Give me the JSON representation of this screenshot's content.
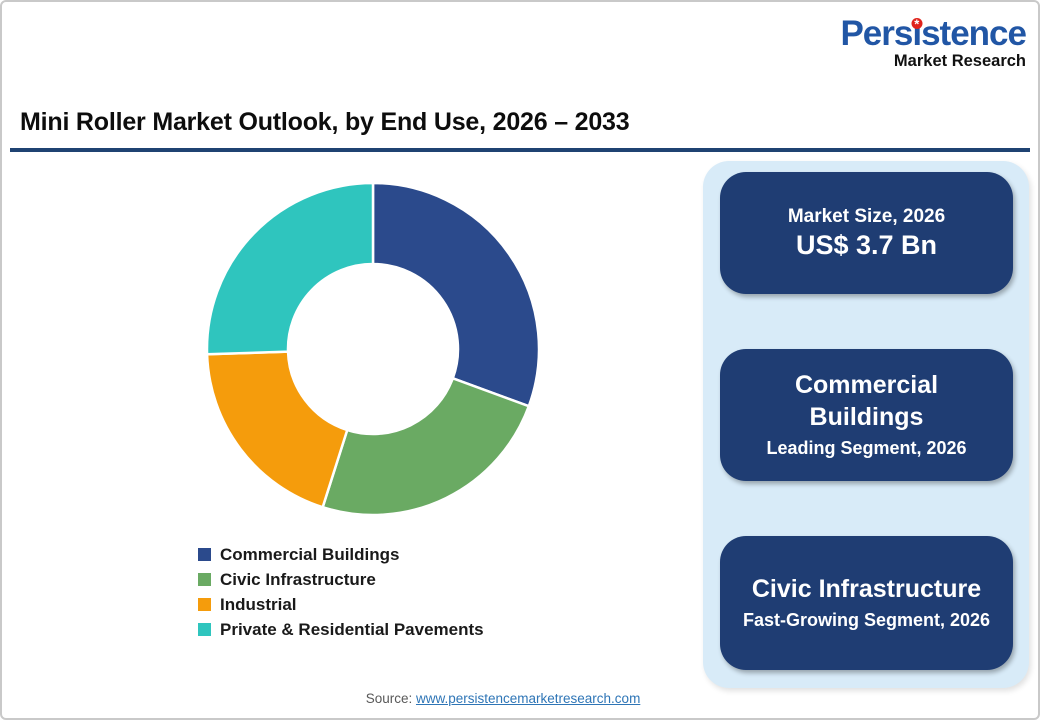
{
  "page": {
    "title": "Mini Roller Market Outlook, by End Use, 2026 – 2033",
    "source_label": "Source:",
    "source_link": "www.persistencemarketresearch.com"
  },
  "logo": {
    "word_parts": [
      "Pers",
      "ı",
      "stence"
    ],
    "subtitle": "Market Research",
    "brand_blue": "#2156a5",
    "brand_red": "#e0231c"
  },
  "colors": {
    "title_rule": "#1f4372",
    "panel_background": "#d8ebf8",
    "card_background": "#1f3d73"
  },
  "chart_data": {
    "type": "pie",
    "donut": true,
    "title": "Mini Roller Market Outlook, by End Use, 2026 – 2033",
    "start_angle_deg": 0,
    "legend_position": "bottom-left",
    "segments": [
      {
        "label": "Commercial Buildings",
        "value_pct": 30.6,
        "color": "#2b4a8c"
      },
      {
        "label": "Civic Infrastructure",
        "value_pct": 24.3,
        "color": "#6aaa63"
      },
      {
        "label": "Industrial",
        "value_pct": 19.6,
        "color": "#f59c0c"
      },
      {
        "label": "Private & Residential Pavements",
        "value_pct": 25.5,
        "color": "#2fc5be"
      }
    ]
  },
  "info_panel": {
    "cards": [
      {
        "top": "Market Size, 2026",
        "bottom": "US$ 3.7 Bn"
      },
      {
        "top": "Commercial Buildings",
        "bottom": "Leading Segment, 2026"
      },
      {
        "top": "Civic Infrastructure",
        "bottom": "Fast-Growing Segment, 2026"
      }
    ]
  }
}
